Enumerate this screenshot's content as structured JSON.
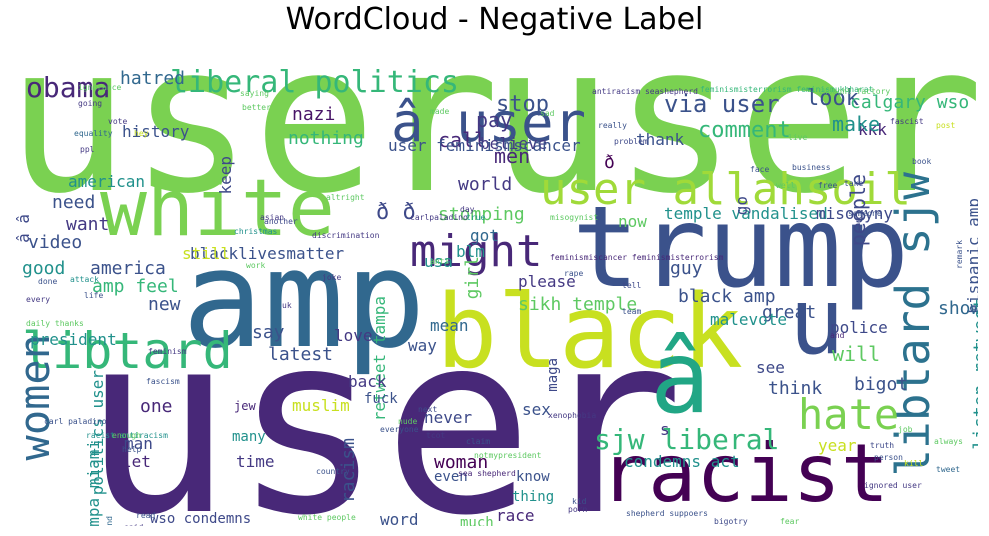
{
  "title": "WordCloud - Negative Label",
  "words": [
    {
      "text": "user"
    },
    {
      "text": "user"
    },
    {
      "text": "user"
    },
    {
      "text": "white"
    },
    {
      "text": "trump"
    },
    {
      "text": "amp"
    },
    {
      "text": "black"
    },
    {
      "text": "racist"
    },
    {
      "text": "â"
    },
    {
      "text": "u"
    },
    {
      "text": "user allahsoil"
    },
    {
      "text": "libtard sjw"
    },
    {
      "text": "â user"
    },
    {
      "text": "libtard"
    },
    {
      "text": "might"
    },
    {
      "text": "hate"
    },
    {
      "text": "women"
    },
    {
      "text": "liberal politics"
    },
    {
      "text": "obama"
    },
    {
      "text": "sjw liberal"
    },
    {
      "text": "via user"
    },
    {
      "text": "stop"
    },
    {
      "text": "comment"
    },
    {
      "text": "look"
    },
    {
      "text": "calgary wso"
    },
    {
      "text": "nazi"
    },
    {
      "text": "hatred"
    },
    {
      "text": "pay"
    },
    {
      "text": "call"
    },
    {
      "text": "believe"
    },
    {
      "text": "men"
    },
    {
      "text": "keep"
    },
    {
      "text": "history"
    },
    {
      "text": "nothing"
    },
    {
      "text": "thank"
    },
    {
      "text": "kkk"
    },
    {
      "text": "make"
    },
    {
      "text": "people"
    },
    {
      "text": "user feminismscancer"
    },
    {
      "text": "american"
    },
    {
      "text": "world"
    },
    {
      "text": "need"
    },
    {
      "text": "want"
    },
    {
      "text": "stomping"
    },
    {
      "text": "video"
    },
    {
      "text": "temple vandalised"
    },
    {
      "text": "misogyny"
    },
    {
      "text": "hispanic amp"
    },
    {
      "text": "good"
    },
    {
      "text": "america"
    },
    {
      "text": "amp feel"
    },
    {
      "text": "new"
    },
    {
      "text": "blacklivesmatter"
    },
    {
      "text": "still"
    },
    {
      "text": "blm"
    },
    {
      "text": "girl"
    },
    {
      "text": "got"
    },
    {
      "text": "guy"
    },
    {
      "text": "now"
    },
    {
      "text": "go"
    },
    {
      "text": "usa"
    },
    {
      "text": "please"
    },
    {
      "text": "sikh temple"
    },
    {
      "text": "black amp"
    },
    {
      "text": "great"
    },
    {
      "text": "malevote"
    },
    {
      "text": "show"
    },
    {
      "text": "police"
    },
    {
      "text": "president"
    },
    {
      "text": "say"
    },
    {
      "text": "latest"
    },
    {
      "text": "love"
    },
    {
      "text": "mean"
    },
    {
      "text": "way"
    },
    {
      "text": "will"
    },
    {
      "text": "see"
    },
    {
      "text": "think"
    },
    {
      "text": "bigot"
    },
    {
      "text": "listen retweet"
    },
    {
      "text": "retweet tampa"
    },
    {
      "text": "racism"
    },
    {
      "text": "back"
    },
    {
      "text": "one"
    },
    {
      "text": "muslim"
    },
    {
      "text": "sex"
    },
    {
      "text": "man"
    },
    {
      "text": "never"
    },
    {
      "text": "year"
    },
    {
      "text": "let"
    },
    {
      "text": "time"
    },
    {
      "text": "woman"
    },
    {
      "text": "condemns act"
    },
    {
      "text": "many"
    },
    {
      "text": "tampa miami"
    },
    {
      "text": "politics user"
    },
    {
      "text": "know"
    },
    {
      "text": "even"
    },
    {
      "text": "thing"
    },
    {
      "text": "race"
    },
    {
      "text": "media"
    },
    {
      "text": "wso condemns"
    },
    {
      "text": "word"
    },
    {
      "text": "much"
    },
    {
      "text": "fuck"
    },
    {
      "text": "jew"
    },
    {
      "text": "s"
    },
    {
      "text": "w"
    },
    {
      "text": "maga"
    },
    {
      "text": "ð"
    },
    {
      "text": "ð ð"
    },
    {
      "text": "â â"
    },
    {
      "text": "ignorance"
    },
    {
      "text": "going"
    },
    {
      "text": "saying"
    },
    {
      "text": "better"
    },
    {
      "text": "vote"
    },
    {
      "text": "equality"
    },
    {
      "text": "ppl"
    },
    {
      "text": "antiracism seashepherd"
    },
    {
      "text": "feminismisterrorism feminismukbharat"
    },
    {
      "text": "made"
    },
    {
      "text": "sad"
    },
    {
      "text": "problem"
    },
    {
      "text": "really"
    },
    {
      "text": "live"
    },
    {
      "text": "thought factory"
    },
    {
      "text": "fascist"
    },
    {
      "text": "post"
    },
    {
      "text": "face"
    },
    {
      "text": "business"
    },
    {
      "text": "book"
    },
    {
      "text": "free"
    },
    {
      "text": "take"
    },
    {
      "text": "altright"
    },
    {
      "text": "someone"
    },
    {
      "text": "another"
    },
    {
      "text": "asian"
    },
    {
      "text": "christmas"
    },
    {
      "text": "discrimination"
    },
    {
      "text": "carlpaladino"
    },
    {
      "text": "misogynist"
    },
    {
      "text": "feminismiscancer feminismisterrorism"
    },
    {
      "text": "rape"
    },
    {
      "text": "team"
    },
    {
      "text": "tell"
    },
    {
      "text": "every"
    },
    {
      "text": "daily thanks"
    },
    {
      "text": "feminism"
    },
    {
      "text": "fascism"
    },
    {
      "text": "carl paladino"
    },
    {
      "text": "racist antiracism"
    },
    {
      "text": "enough"
    },
    {
      "text": "help"
    },
    {
      "text": "read"
    },
    {
      "text": "said"
    },
    {
      "text": "kind"
    },
    {
      "text": "must"
    },
    {
      "text": "white people"
    },
    {
      "text": "country"
    },
    {
      "text": "everyone"
    },
    {
      "text": "nude"
    },
    {
      "text": "next"
    },
    {
      "text": "tcot"
    },
    {
      "text": "claim"
    },
    {
      "text": "xenophobia"
    },
    {
      "text": "notmypresident"
    },
    {
      "text": "kid"
    },
    {
      "text": "sea shepherd"
    },
    {
      "text": "porn"
    },
    {
      "text": "shepherd suppoers"
    },
    {
      "text": "bigotry"
    },
    {
      "text": "come"
    },
    {
      "text": "fear"
    },
    {
      "text": "person"
    },
    {
      "text": "ignored user"
    },
    {
      "text": "kill"
    },
    {
      "text": "tweet"
    },
    {
      "text": "truth"
    },
    {
      "text": "job"
    },
    {
      "text": "always"
    },
    {
      "text": "remark"
    },
    {
      "text": "joke"
    },
    {
      "text": "work"
    },
    {
      "text": "done"
    },
    {
      "text": "life"
    },
    {
      "text": "uk"
    },
    {
      "text": "anti"
    },
    {
      "text": "day"
    },
    {
      "text": "true"
    },
    {
      "text": "hey"
    },
    {
      "text": "stand"
    },
    {
      "text": "attack"
    },
    {
      "text": "ass"
    },
    {
      "text": "well"
    },
    {
      "text": "and"
    },
    {
      "text": "retweet boricua"
    },
    {
      "text": "israel"
    },
    {
      "text": "use"
    },
    {
      "text": "pa"
    },
    {
      "text": "win"
    },
    {
      "text": "hate"
    }
  ]
}
